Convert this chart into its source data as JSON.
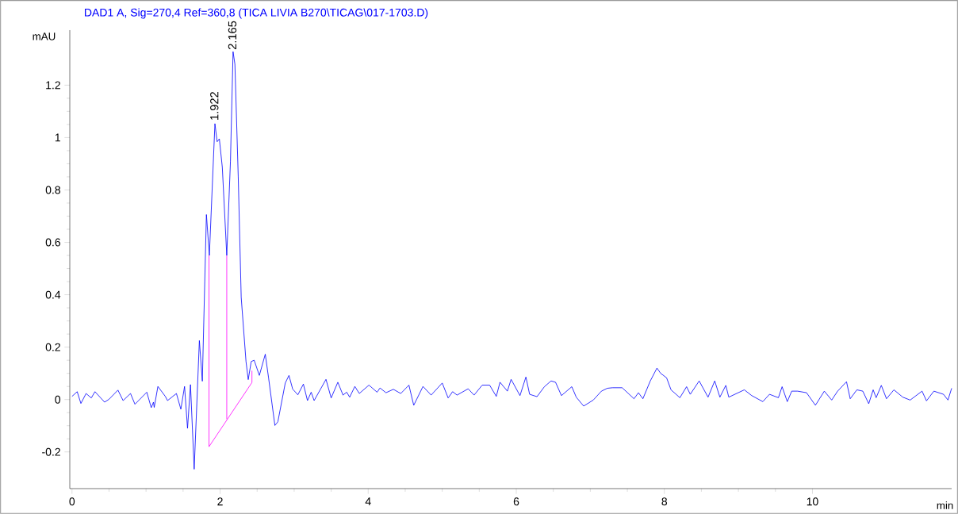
{
  "chart_data": {
    "type": "line",
    "title": "DAD1 A, Sig=270,4 Ref=360,8 (TICA LIVIA B270\\TICAG\\017-1703.D)",
    "xlabel": "min",
    "ylabel": "mAU",
    "xlim": [
      -0.03,
      11.88
    ],
    "ylim": [
      -0.34,
      1.41
    ],
    "xticks": [
      0,
      2,
      4,
      6,
      8,
      10
    ],
    "yticks": [
      -0.2,
      0,
      0.2,
      0.4,
      0.6,
      0.8,
      1,
      1.2
    ],
    "annotations": [
      {
        "text": "1.922",
        "x": 1.922,
        "y": 1.06
      },
      {
        "text": "2.165",
        "x": 2.165,
        "y": 1.33
      }
    ],
    "series": [
      {
        "type": "line",
        "color": "#0000ff",
        "x": [
          0,
          0.07,
          0.12,
          0.19,
          0.26,
          0.31,
          0.44,
          0.5,
          0.62,
          0.69,
          0.79,
          0.85,
          1.01,
          1.07,
          1.1,
          1.11,
          1.16,
          1.26,
          1.29,
          1.41,
          1.47,
          1.52,
          1.56,
          1.6,
          1.65,
          1.72,
          1.76,
          1.815,
          1.855,
          1.93,
          1.96,
          1.99,
          2.03,
          2.09,
          2.14,
          2.175,
          2.2,
          2.245,
          2.285,
          2.35,
          2.38,
          2.42,
          2.46,
          2.53,
          2.61,
          2.655,
          2.74,
          2.78,
          2.88,
          2.93,
          2.98,
          3.05,
          3.125,
          3.18,
          3.23,
          3.27,
          3.43,
          3.5,
          3.59,
          3.66,
          3.71,
          3.75,
          3.82,
          3.88,
          4.01,
          4.12,
          4.16,
          4.24,
          4.34,
          4.44,
          4.55,
          4.615,
          4.74,
          4.85,
          5.0,
          5.08,
          5.14,
          5.2,
          5.35,
          5.43,
          5.54,
          5.64,
          5.73,
          5.78,
          5.88,
          5.93,
          6.05,
          6.13,
          6.18,
          6.28,
          6.38,
          6.47,
          6.53,
          6.61,
          6.75,
          6.81,
          6.91,
          7.04,
          7.15,
          7.23,
          7.3,
          7.43,
          7.59,
          7.65,
          7.71,
          7.81,
          7.9,
          7.95,
          8.03,
          8.09,
          8.21,
          8.3,
          8.35,
          8.47,
          8.59,
          8.68,
          8.75,
          8.83,
          8.87,
          9.08,
          9.18,
          9.33,
          9.42,
          9.54,
          9.59,
          9.66,
          9.72,
          9.8,
          9.92,
          10.04,
          10.16,
          10.26,
          10.34,
          10.46,
          10.51,
          10.6,
          10.68,
          10.76,
          10.82,
          10.86,
          10.93,
          11.0,
          11.1,
          11.22,
          11.32,
          11.48,
          11.54,
          11.64,
          11.77,
          11.83,
          11.88
        ],
        "values": [
          0.012,
          0.03,
          -0.015,
          0.023,
          0.006,
          0.03,
          -0.01,
          0.001,
          0.036,
          -0.004,
          0.023,
          -0.018,
          0.028,
          -0.031,
          -0.01,
          -0.03,
          0.05,
          0.012,
          -0.004,
          0.023,
          -0.037,
          0.05,
          -0.11,
          0.057,
          -0.266,
          0.225,
          0.07,
          0.706,
          0.55,
          1.053,
          0.984,
          0.995,
          0.886,
          0.55,
          0.91,
          1.328,
          1.28,
          0.85,
          0.39,
          0.145,
          0.076,
          0.145,
          0.15,
          0.092,
          0.173,
          0.082,
          -0.099,
          -0.085,
          0.063,
          0.092,
          0.04,
          0.018,
          0.059,
          -0.004,
          0.028,
          -0.004,
          0.077,
          0.006,
          0.066,
          0.017,
          0.028,
          0.009,
          0.05,
          0.023,
          0.055,
          0.028,
          0.044,
          0.026,
          0.039,
          0.023,
          0.055,
          -0.022,
          0.05,
          0.017,
          0.063,
          0.006,
          0.03,
          0.017,
          0.041,
          0.017,
          0.055,
          0.055,
          0.012,
          0.066,
          0.032,
          0.077,
          0.015,
          0.086,
          0.02,
          0.011,
          0.049,
          0.071,
          0.066,
          0.015,
          0.049,
          0.009,
          -0.025,
          -0.002,
          0.032,
          0.043,
          0.045,
          0.045,
          0.003,
          0.026,
          0.003,
          0.071,
          0.12,
          0.1,
          0.083,
          0.037,
          0.007,
          0.049,
          0.02,
          0.071,
          0.009,
          0.071,
          0.009,
          0.054,
          0.009,
          0.037,
          0.015,
          -0.008,
          0.02,
          0.007,
          0.049,
          -0.008,
          0.032,
          0.032,
          0.026,
          -0.022,
          0.032,
          -0.002,
          0.032,
          0.068,
          0.003,
          0.037,
          0.032,
          -0.016,
          0.037,
          0.007,
          0.054,
          0.003,
          0.037,
          0.009,
          -0.002,
          0.032,
          -0.005,
          0.032,
          0.02,
          -0.002,
          0.043
        ]
      },
      {
        "type": "line",
        "color": "#ff00ff",
        "x": [
          2.43,
          2.43,
          1.85,
          1.85
        ],
        "values": [
          0.11,
          0.065,
          -0.18,
          0.55
        ]
      },
      {
        "type": "line",
        "color": "#ff00ff",
        "x": [
          2.09,
          2.09
        ],
        "values": [
          -0.075,
          0.55
        ]
      }
    ]
  }
}
